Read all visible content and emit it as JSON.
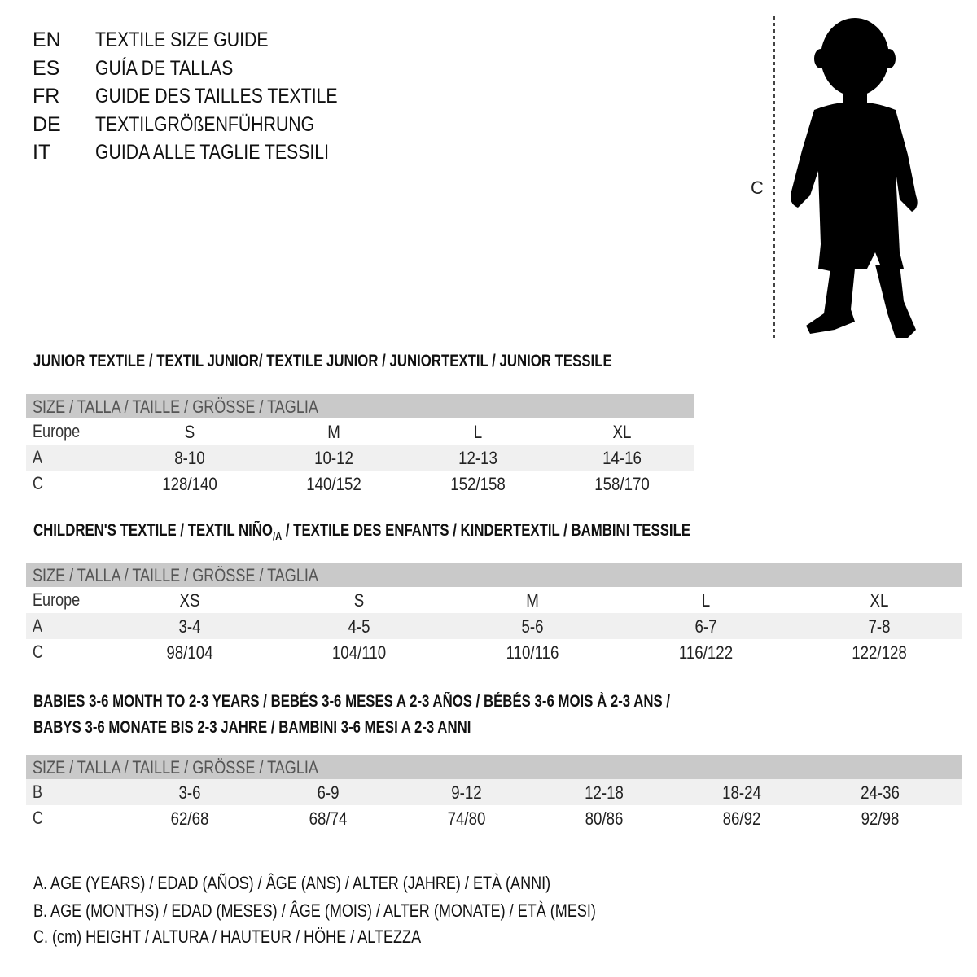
{
  "titles": [
    {
      "lang": "EN",
      "text": "TEXTILE SIZE GUIDE"
    },
    {
      "lang": "ES",
      "text": "GUÍA DE TALLAS"
    },
    {
      "lang": "FR",
      "text": "GUIDE DES TAILLES TEXTILE"
    },
    {
      "lang": "DE",
      "text": "TEXTILGRÖßENFÜHRUNG"
    },
    {
      "lang": "IT",
      "text": "GUIDA ALLE TAGLIE TESSILI"
    }
  ],
  "figure": {
    "measure_label": "C"
  },
  "junior": {
    "heading": "JUNIOR TEXTILE / TEXTIL JUNIOR/ TEXTILE JUNIOR / JUNIORTEXTIL / JUNIOR TESSILE",
    "header": "SIZE / TALLA / TAILLE / GRÖSSE / TAGLIA",
    "rows": [
      {
        "label": "Europe",
        "values": [
          "S",
          "M",
          "L",
          "XL"
        ]
      },
      {
        "label": "A",
        "values": [
          "8-10",
          "10-12",
          "12-13",
          "14-16"
        ]
      },
      {
        "label": "C",
        "values": [
          "128/140",
          "140/152",
          "152/158",
          "158/170"
        ]
      }
    ]
  },
  "children": {
    "heading_pre": "CHILDREN'S TEXTILE / TEXTIL NIÑO",
    "heading_sub": "/A",
    "heading_post": " / TEXTILE DES ENFANTS / KINDERTEXTIL / BAMBINI TESSILE",
    "header": "SIZE / TALLA / TAILLE / GRÖSSE / TAGLIA",
    "rows": [
      {
        "label": "Europe",
        "values": [
          "XS",
          "S",
          "M",
          "L",
          "XL"
        ]
      },
      {
        "label": "A",
        "values": [
          "3-4",
          "4-5",
          "5-6",
          "6-7",
          "7-8"
        ]
      },
      {
        "label": "C",
        "values": [
          "98/104",
          "104/110",
          "110/116",
          "116/122",
          "122/128"
        ]
      }
    ]
  },
  "babies": {
    "heading_line1": "BABIES 3-6 MONTH TO 2-3 YEARS / BEBÉS 3-6 MESES A 2-3 AÑOS / BÉBÉS 3-6 MOIS À 2-3 ANS /",
    "heading_line2": "BABYS 3-6 MONATE BIS 2-3 JAHRE / BAMBINI 3-6 MESI A 2-3 ANNI",
    "header": "SIZE / TALLA / TAILLE / GRÖSSE / TAGLIA",
    "rows": [
      {
        "label": "B",
        "values": [
          "3-6",
          "6-9",
          "9-12",
          "12-18",
          "18-24",
          "24-36"
        ]
      },
      {
        "label": "C",
        "values": [
          "62/68",
          "68/74",
          "74/80",
          "80/86",
          "86/92",
          "92/98"
        ]
      }
    ]
  },
  "legend": [
    "A. AGE (YEARS) / EDAD (AÑOS) / ÂGE (ANS) / ALTER (JAHRE) / ETÀ (ANNI)",
    "B. AGE (MONTHS) / EDAD (MESES) / ÂGE (MOIS) / ALTER (MONATE) / ETÀ (MESI)",
    "C. (cm) HEIGHT / ALTURA / HAUTEUR / HÖHE / ALTEZZA"
  ]
}
